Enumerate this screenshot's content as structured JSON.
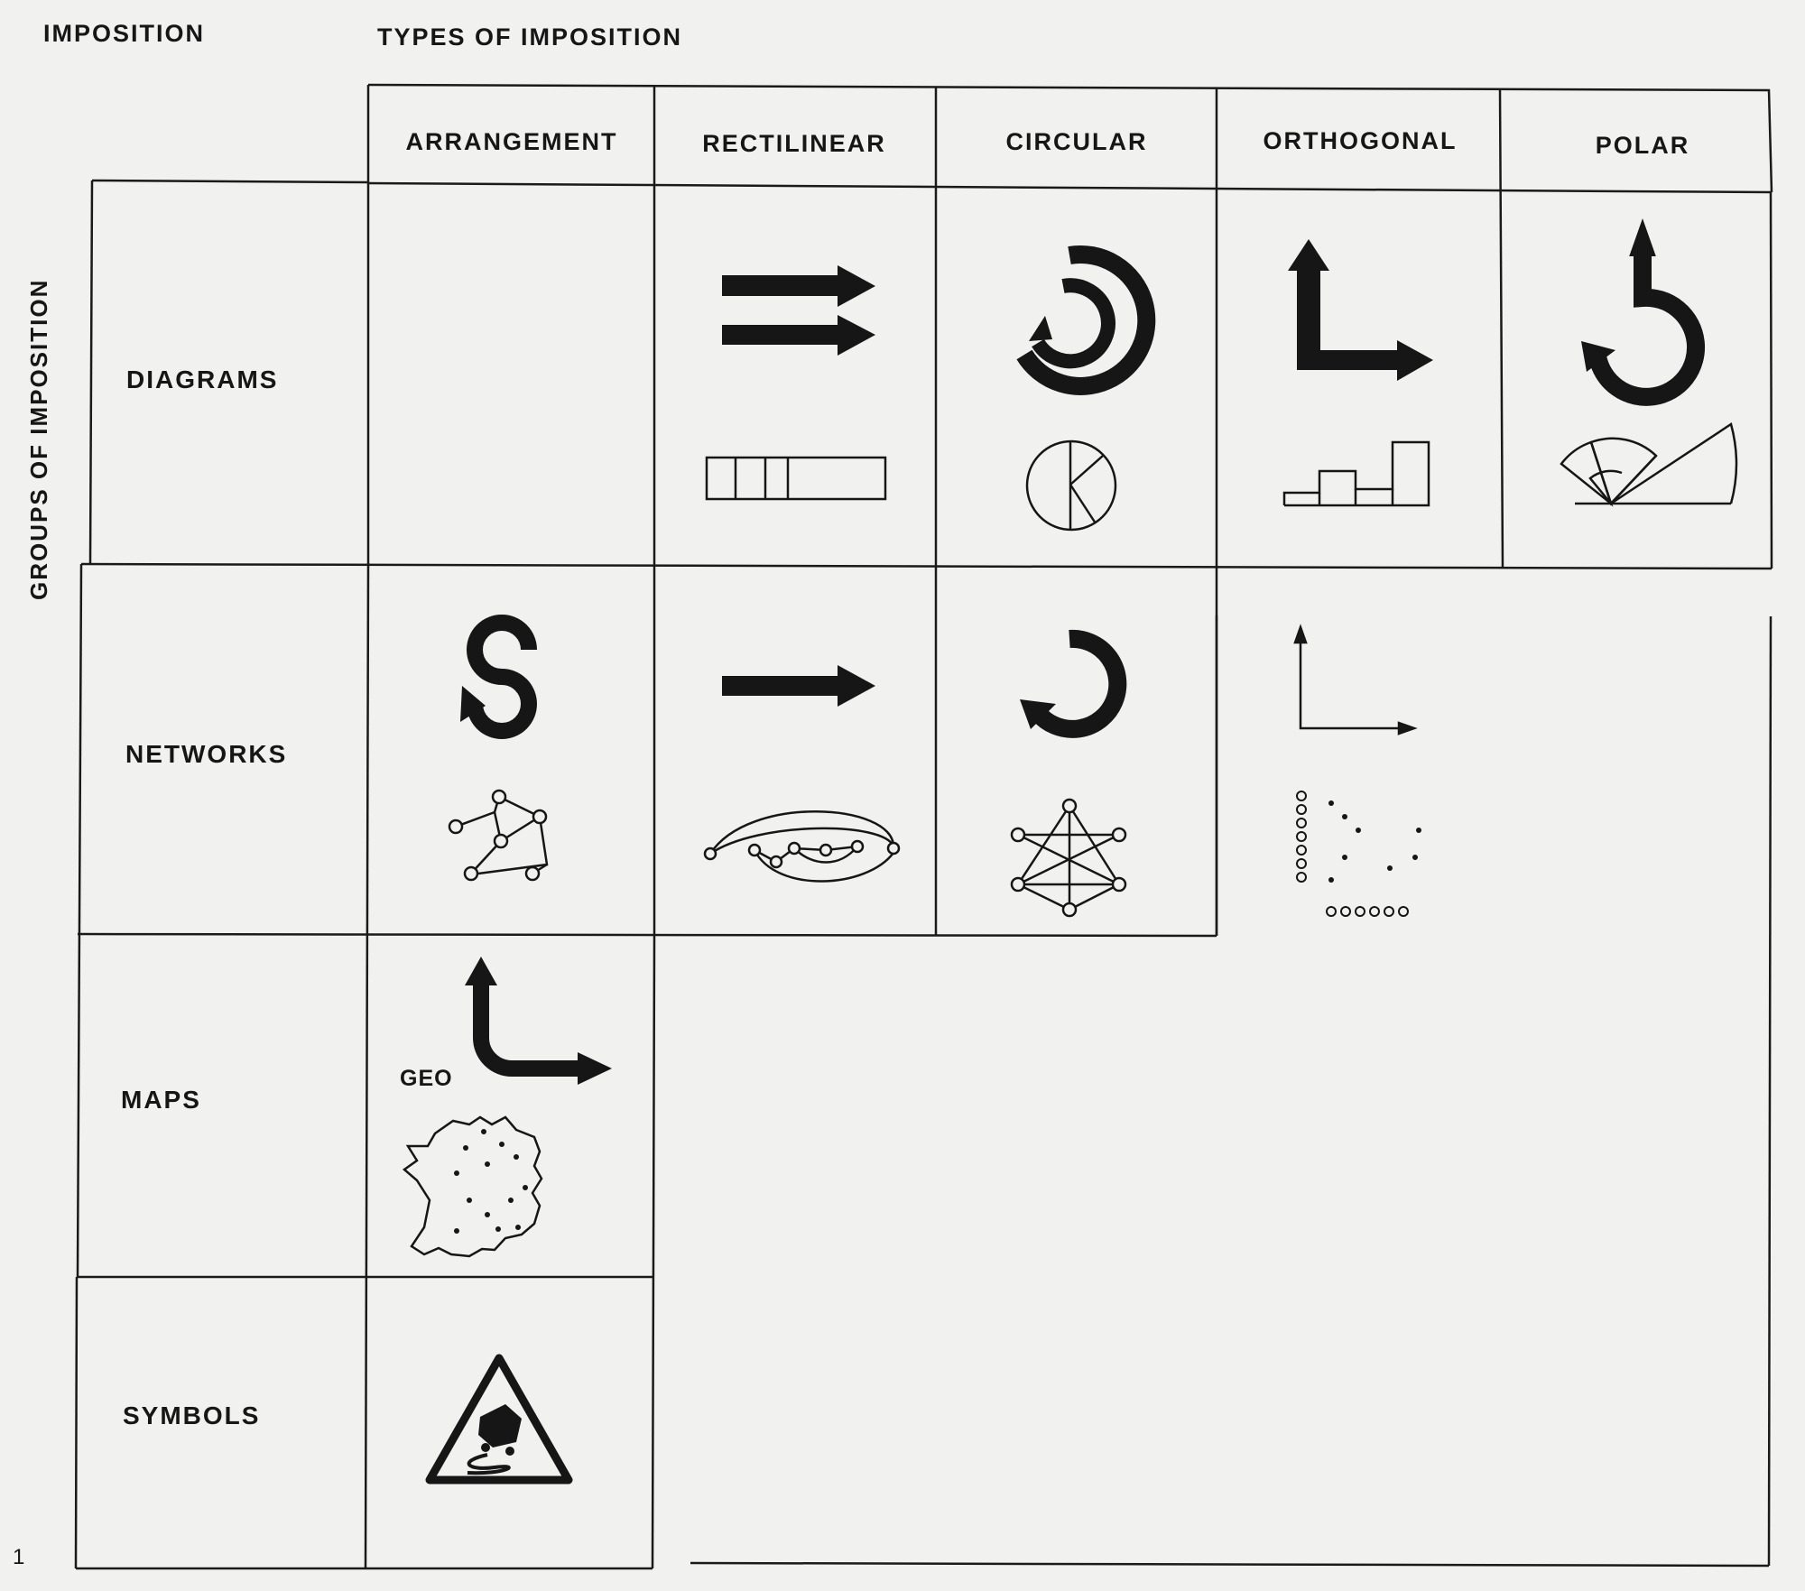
{
  "header": {
    "imposition": "IMPOSITION",
    "types_of_imposition": "TYPES OF IMPOSITION"
  },
  "columns": [
    "ARRANGEMENT",
    "RECTILINEAR",
    "CIRCULAR",
    "ORTHOGONAL",
    "POLAR"
  ],
  "groups_label": "GROUPS OF IMPOSITION",
  "rows": [
    "DIAGRAMS",
    "NETWORKS",
    "MAPS",
    "SYMBOLS"
  ],
  "maps": {
    "geo_label": "GEO"
  },
  "page_number": "1",
  "colors": {
    "ink": "#161616",
    "paper": "#f1f1ef"
  }
}
